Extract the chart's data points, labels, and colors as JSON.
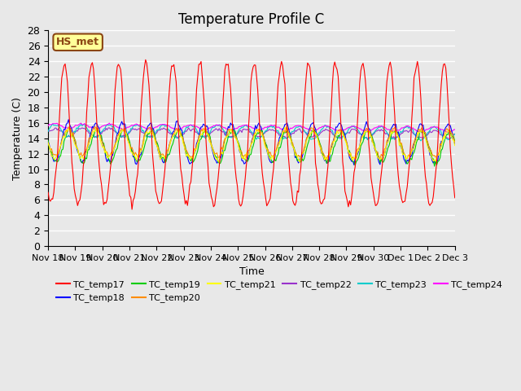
{
  "title": "Temperature Profile C",
  "xlabel": "Time",
  "ylabel": "Temperature (C)",
  "ylim": [
    0,
    28
  ],
  "yticks": [
    0,
    2,
    4,
    6,
    8,
    10,
    12,
    14,
    16,
    18,
    20,
    22,
    24,
    26,
    28
  ],
  "xtick_labels": [
    "Nov 18",
    "Nov 19",
    "Nov 20",
    "Nov 21",
    "Nov 22",
    "Nov 23",
    "Nov 24",
    "Nov 25",
    "Nov 26",
    "Nov 27",
    "Nov 28",
    "Nov 29",
    "Nov 30",
    "Dec 1",
    "Dec 2",
    "Dec 3"
  ],
  "annotation_text": "HS_met",
  "annotation_color": "#8B4513",
  "annotation_bg": "#FFFF99",
  "series_colors": {
    "TC_temp17": "#FF0000",
    "TC_temp18": "#0000FF",
    "TC_temp19": "#00CC00",
    "TC_temp20": "#FF8C00",
    "TC_temp21": "#FFFF00",
    "TC_temp22": "#9932CC",
    "TC_temp23": "#00CCCC",
    "TC_temp24": "#FF00FF"
  },
  "background_color": "#E8E8E8",
  "plot_bg_color": "#E8E8E8",
  "grid_color": "#FFFFFF",
  "title_fontsize": 12,
  "legend_fontsize": 8,
  "axis_fontsize": 9
}
